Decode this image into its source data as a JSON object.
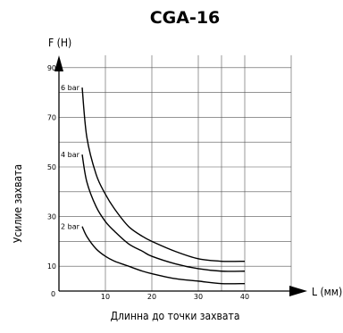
{
  "chart_data": {
    "type": "line",
    "title": "CGA-16",
    "ylabel_top": "F (H)",
    "ylabel_side": "Усилие захвата",
    "xlabel_end": "L (мм)",
    "xlabel_bottom": "Длинна до точки захвата",
    "origin_label": "0",
    "xlim": [
      0,
      50
    ],
    "ylim": [
      0,
      95
    ],
    "x_ticks": [
      "10",
      "20",
      "30",
      "40"
    ],
    "y_ticks": [
      "10",
      "30",
      "50",
      "70",
      "90"
    ],
    "grid": true,
    "series": [
      {
        "name": "6 bar",
        "x": [
          5,
          6,
          8,
          10,
          12,
          15,
          18,
          20,
          25,
          30,
          35,
          40
        ],
        "y": [
          82,
          62,
          47,
          39,
          33,
          26,
          22,
          20,
          16,
          13,
          12,
          12
        ]
      },
      {
        "name": "4 bar",
        "x": [
          5,
          6,
          8,
          10,
          12,
          15,
          18,
          20,
          25,
          30,
          35,
          40
        ],
        "y": [
          55,
          44,
          34,
          28,
          24,
          19,
          16,
          14,
          11,
          9,
          8,
          8
        ]
      },
      {
        "name": "2 bar",
        "x": [
          5,
          6,
          8,
          10,
          12,
          15,
          18,
          20,
          25,
          30,
          35,
          40
        ],
        "y": [
          26,
          22,
          17,
          14,
          12,
          10,
          8,
          7,
          5,
          4,
          3,
          3
        ]
      }
    ]
  }
}
